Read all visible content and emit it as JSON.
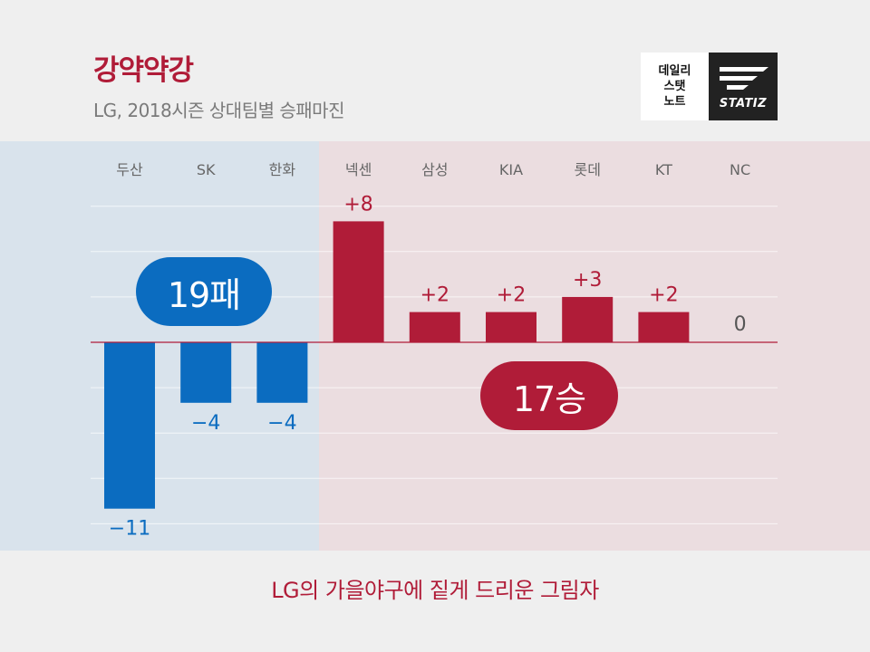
{
  "header": {
    "title": "강약약강",
    "subtitle": "LG, 2018시즌 상대팀별 승패마진"
  },
  "logo": {
    "left_lines": [
      "데일리",
      "스탯",
      "노트"
    ],
    "right_text": "STATIZ"
  },
  "summary": {
    "loss_label": "19패",
    "win_label": "17승"
  },
  "caption": "LG의 가을야구에 짙게 드리운 그림자",
  "colors": {
    "loss": "#0b6cc0",
    "win": "#b01c38",
    "loss_panel": "#d9e3ec",
    "win_panel": "#ebdde0"
  },
  "chart_data": {
    "type": "bar",
    "title": "",
    "xlabel": "",
    "ylabel": "",
    "categories": [
      "두산",
      "SK",
      "한화",
      "넥센",
      "삼성",
      "KIA",
      "롯데",
      "KT",
      "NC"
    ],
    "values": [
      -11,
      -4,
      -4,
      8,
      2,
      2,
      3,
      2,
      0
    ],
    "value_labels": [
      "−11",
      "−4",
      "−4",
      "+8",
      "+2",
      "+2",
      "+3",
      "+2",
      "0"
    ],
    "ylim": [
      -14,
      9
    ],
    "grid": true,
    "legend": "none"
  }
}
